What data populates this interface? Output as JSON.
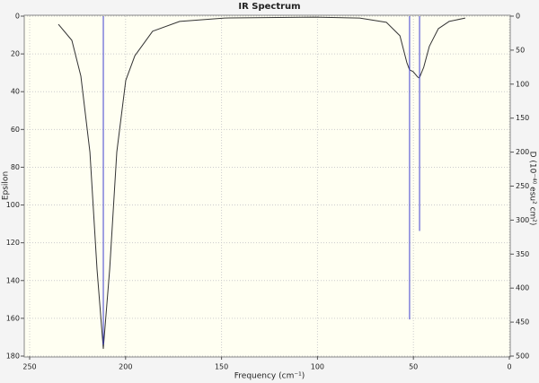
{
  "chart_data": {
    "type": "line",
    "title": "IR Spectrum",
    "x_label": "Frequency (cm⁻¹)",
    "y_label": "Epsilon",
    "y2_label": "D (10⁻⁴⁰ esu² cm²)",
    "xlim": [
      250,
      0
    ],
    "xticks": [
      250,
      200,
      150,
      100,
      50,
      0
    ],
    "ylim": [
      180,
      0
    ],
    "yticks": [
      0,
      20,
      40,
      60,
      80,
      100,
      120,
      140,
      160,
      180
    ],
    "y2lim": [
      500,
      0
    ],
    "y2ticks": [
      0,
      50,
      100,
      150,
      200,
      250,
      300,
      350,
      400,
      450,
      500
    ],
    "grid": true,
    "series": [
      {
        "color": "#333333",
        "x": [
          235,
          228,
          223.3,
          218.6,
          214.9,
          211.6,
          208.3,
          204.6,
          199.9,
          195.2,
          185.9,
          171.8,
          148.4,
          101.6,
          78,
          64.1,
          57,
          53.4,
          52,
          50.1,
          47.8,
          46.9,
          44.6,
          41.7,
          37,
          31.4,
          23
        ],
        "values": [
          4.3,
          12.8,
          31.7,
          72,
          134,
          176,
          134,
          72,
          34,
          21,
          8,
          2.8,
          1,
          0.5,
          1,
          3.3,
          10.4,
          24.6,
          28.4,
          29.4,
          32.2,
          32.7,
          27,
          16,
          6.6,
          2.8,
          1
        ]
      },
      {
        "color": "#4040d0",
        "axis": "y2",
        "style": "stick",
        "x": [
          211.6,
          52,
          46.8
        ],
        "values": [
          483,
          446,
          316
        ]
      }
    ]
  }
}
